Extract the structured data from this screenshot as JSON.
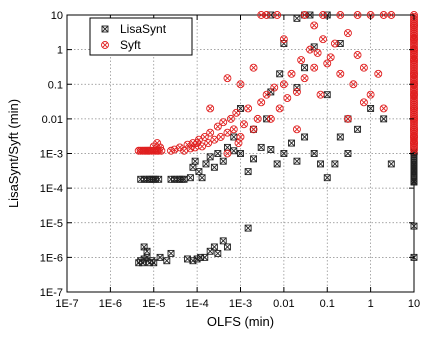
{
  "chart_data": {
    "type": "scatter",
    "xlabel": "OLFS (min)",
    "ylabel": "LisaSynt/Syft (min)",
    "x_scale": "log",
    "y_scale": "log",
    "xlim": [
      1e-07,
      10
    ],
    "ylim": [
      1e-07,
      10
    ],
    "grid": true,
    "legend_position": "top-left",
    "x_ticks": [
      "1E-7",
      "1E-6",
      "1E-5",
      "1E-4",
      "1E-3",
      "0.01",
      "0.1",
      "1",
      "10"
    ],
    "y_ticks": [
      "1E-7",
      "1E-6",
      "1E-5",
      "1E-4",
      "1E-3",
      "0.01",
      "0.1",
      "1",
      "10"
    ],
    "series": [
      {
        "name": "LisaSynt",
        "color": "#222222",
        "marker": "square-x",
        "points": [
          [
            4.5e-06,
            7e-07
          ],
          [
            5e-06,
            8e-07
          ],
          [
            5.5e-06,
            7e-07
          ],
          [
            6e-06,
            9e-07
          ],
          [
            7e-06,
            1e-06
          ],
          [
            8e-06,
            7e-07
          ],
          [
            9e-06,
            8e-07
          ],
          [
            1e-05,
            7e-07
          ],
          [
            6e-06,
            2e-06
          ],
          [
            7e-06,
            1.5e-06
          ],
          [
            1.4e-05,
            1e-06
          ],
          [
            2.5e-05,
            1.3e-06
          ],
          [
            2e-05,
            8e-07
          ],
          [
            6e-05,
            9e-07
          ],
          [
            8e-05,
            8e-07
          ],
          [
            0.0001,
            9e-07
          ],
          [
            0.00012,
            1e-06
          ],
          [
            0.00015,
            1e-06
          ],
          [
            0.0002,
            1.5e-06
          ],
          [
            0.00025,
            2e-06
          ],
          [
            0.0003,
            1.3e-06
          ],
          [
            0.0004,
            3e-06
          ],
          [
            0.0005,
            2e-06
          ],
          [
            0.0015,
            7e-06
          ],
          [
            5e-06,
            0.00018
          ],
          [
            6e-06,
            0.00018
          ],
          [
            7e-06,
            0.00018
          ],
          [
            8e-06,
            0.00018
          ],
          [
            9e-06,
            0.00018
          ],
          [
            1e-05,
            0.00018
          ],
          [
            1.1e-05,
            0.00018
          ],
          [
            1.3e-05,
            0.00018
          ],
          [
            2.5e-05,
            0.00018
          ],
          [
            3e-05,
            0.00018
          ],
          [
            3.5e-05,
            0.00018
          ],
          [
            4e-05,
            0.00018
          ],
          [
            4.5e-05,
            0.00018
          ],
          [
            5e-05,
            0.00018
          ],
          [
            7e-05,
            0.0002
          ],
          [
            8e-05,
            0.0004
          ],
          [
            9e-05,
            0.0006
          ],
          [
            0.00011,
            0.0003
          ],
          [
            0.00013,
            0.0002
          ],
          [
            0.00016,
            0.0005
          ],
          [
            0.0002,
            0.0008
          ],
          [
            0.00025,
            0.0004
          ],
          [
            0.0003,
            0.001
          ],
          [
            0.0004,
            0.0006
          ],
          [
            0.0005,
            0.0015
          ],
          [
            0.0007,
            0.0012
          ],
          [
            0.001,
            0.001
          ],
          [
            0.0015,
            0.0003
          ],
          [
            0.002,
            0.0007
          ],
          [
            0.003,
            0.0015
          ],
          [
            0.005,
            0.0013
          ],
          [
            0.007,
            0.0005
          ],
          [
            0.01,
            0.001
          ],
          [
            0.015,
            0.002
          ],
          [
            0.02,
            0.0006
          ],
          [
            0.03,
            0.003
          ],
          [
            0.05,
            0.001
          ],
          [
            0.07,
            0.0005
          ],
          [
            0.1,
            0.0002
          ],
          [
            0.15,
            0.0005
          ],
          [
            0.2,
            0.003
          ],
          [
            0.3,
            0.01
          ],
          [
            0.5,
            0.005
          ],
          [
            1,
            0.02
          ],
          [
            0.3,
            0.001
          ],
          [
            2,
            0.01
          ],
          [
            3,
            0.0005
          ],
          [
            0.01,
            1.5
          ],
          [
            0.02,
            8
          ],
          [
            0.03,
            0.3
          ],
          [
            0.1,
            0.05
          ],
          [
            0.005,
            0.06
          ],
          [
            0.004,
            0.01
          ],
          [
            0.008,
            0.2
          ],
          [
            0.001,
            0.02
          ],
          [
            0.002,
            0.005
          ],
          [
            0.0007,
            0.003
          ],
          [
            0.02,
            0.08
          ],
          [
            0.05,
            1.2
          ],
          [
            0.04,
            10
          ],
          [
            0.03,
            10
          ],
          [
            0.005,
            10
          ],
          [
            0.2,
            1.5
          ],
          [
            0.1,
            10
          ],
          [
            10,
            1e-06
          ],
          [
            10,
            8e-06
          ],
          [
            10,
            0.00015
          ],
          [
            10,
            0.0003
          ],
          [
            10,
            0.0005
          ]
        ]
      },
      {
        "name": "Syft",
        "color": "#e02020",
        "marker": "circle-x",
        "points": [
          [
            4.5e-06,
            0.0012
          ],
          [
            5e-06,
            0.0012
          ],
          [
            5.5e-06,
            0.0012
          ],
          [
            6e-06,
            0.0012
          ],
          [
            6.5e-06,
            0.0012
          ],
          [
            7e-06,
            0.0012
          ],
          [
            7.5e-06,
            0.0012
          ],
          [
            8e-06,
            0.0012
          ],
          [
            9e-06,
            0.0012
          ],
          [
            1e-05,
            0.0012
          ],
          [
            1.1e-05,
            0.0012
          ],
          [
            1.2e-05,
            0.0012
          ],
          [
            1.3e-05,
            0.0012
          ],
          [
            1.5e-05,
            0.0012
          ],
          [
            1.4e-05,
            0.0015
          ],
          [
            1.2e-05,
            0.002
          ],
          [
            1e-05,
            0.0016
          ],
          [
            2.5e-05,
            0.0012
          ],
          [
            3e-05,
            0.0013
          ],
          [
            4e-05,
            0.0015
          ],
          [
            5e-05,
            0.0012
          ],
          [
            6e-05,
            0.0018
          ],
          [
            7e-05,
            0.0014
          ],
          [
            8e-05,
            0.002
          ],
          [
            9e-05,
            0.0015
          ],
          [
            0.00011,
            0.0025
          ],
          [
            0.00013,
            0.0016
          ],
          [
            0.00015,
            0.003
          ],
          [
            0.00018,
            0.002
          ],
          [
            0.0002,
            0.004
          ],
          [
            0.00025,
            0.0025
          ],
          [
            0.0003,
            0.006
          ],
          [
            0.00035,
            0.003
          ],
          [
            0.0004,
            0.008
          ],
          [
            0.0005,
            0.004
          ],
          [
            0.0006,
            0.01
          ],
          [
            0.0007,
            0.005
          ],
          [
            0.0008,
            0.015
          ],
          [
            0.0009,
            0.002
          ],
          [
            0.001,
            0.003
          ],
          [
            0.0012,
            0.007
          ],
          [
            0.0015,
            0.02
          ],
          [
            0.002,
            0.005
          ],
          [
            0.0025,
            0.01
          ],
          [
            0.003,
            0.03
          ],
          [
            0.004,
            0.05
          ],
          [
            0.005,
            0.01
          ],
          [
            0.006,
            0.08
          ],
          [
            0.008,
            0.02
          ],
          [
            0.01,
            0.1
          ],
          [
            0.012,
            0.04
          ],
          [
            0.015,
            0.2
          ],
          [
            0.02,
            0.06
          ],
          [
            0.025,
            0.5
          ],
          [
            0.03,
            0.15
          ],
          [
            0.04,
            1
          ],
          [
            0.05,
            0.3
          ],
          [
            0.06,
            0.8
          ],
          [
            0.07,
            0.05
          ],
          [
            0.08,
            2
          ],
          [
            0.1,
            0.4
          ],
          [
            0.12,
            0.6
          ],
          [
            0.15,
            1.5
          ],
          [
            0.2,
            0.2
          ],
          [
            0.3,
            3
          ],
          [
            0.4,
            0.1
          ],
          [
            0.5,
            0.7
          ],
          [
            0.7,
            0.03
          ],
          [
            1,
            0.05
          ],
          [
            1.5,
            0.2
          ],
          [
            2,
            0.02
          ],
          [
            0.05,
            5
          ],
          [
            0.003,
            10
          ],
          [
            0.004,
            10
          ],
          [
            0.007,
            10
          ],
          [
            0.03,
            10
          ],
          [
            0.08,
            10
          ],
          [
            0.2,
            10
          ],
          [
            0.5,
            10
          ],
          [
            1,
            10
          ],
          [
            2,
            10
          ],
          [
            3,
            10
          ],
          [
            0.0002,
            0.02
          ],
          [
            0.0001,
            0.002
          ],
          [
            0.0005,
            0.001
          ],
          [
            0.001,
            0.1
          ],
          [
            0.002,
            0.3
          ],
          [
            0.01,
            2
          ],
          [
            0.02,
            0.005
          ],
          [
            0.3,
            0.01
          ],
          [
            0.0005,
            0.15
          ],
          [
            0.7,
            0.3
          ],
          [
            10,
            0.001
          ],
          [
            10,
            0.002
          ],
          [
            10,
            0.003
          ],
          [
            10,
            0.005
          ],
          [
            10,
            0.01
          ],
          [
            10,
            0.02
          ],
          [
            10,
            0.05
          ],
          [
            10,
            0.1
          ],
          [
            10,
            0.2
          ],
          [
            10,
            0.5
          ],
          [
            10,
            1
          ],
          [
            10,
            2
          ],
          [
            10,
            5
          ],
          [
            10,
            10
          ]
        ]
      }
    ]
  }
}
